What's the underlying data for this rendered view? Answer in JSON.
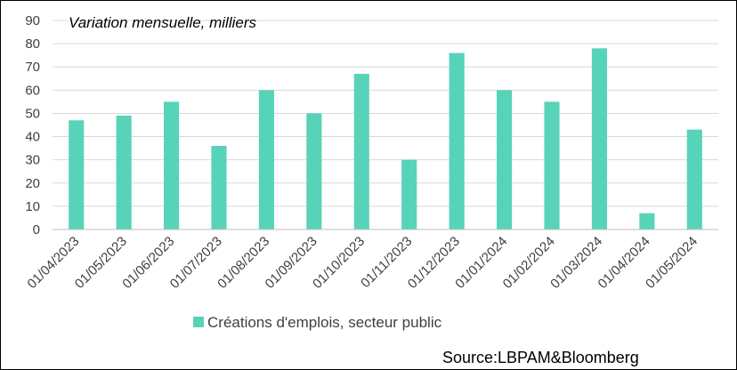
{
  "chart_data": {
    "type": "bar",
    "subtitle": "Variation mensuelle, milliers",
    "categories": [
      "01/04/2023",
      "01/05/2023",
      "01/06/2023",
      "01/07/2023",
      "01/08/2023",
      "01/09/2023",
      "01/10/2023",
      "01/11/2023",
      "01/12/2023",
      "01/01/2024",
      "01/02/2024",
      "01/03/2024",
      "01/04/2024",
      "01/05/2024"
    ],
    "series": [
      {
        "name": "Créations d'emplois, secteur public",
        "color": "#57D3B9",
        "values": [
          47,
          49,
          55,
          36,
          60,
          50,
          67,
          30,
          76,
          60,
          55,
          78,
          7,
          43
        ]
      }
    ],
    "ylim": [
      0,
      90
    ],
    "yticks": [
      0,
      10,
      20,
      30,
      40,
      50,
      60,
      70,
      80,
      90
    ],
    "grid": true,
    "legend": "bottom-center",
    "source": "Source:LBPAM&Bloomberg"
  }
}
